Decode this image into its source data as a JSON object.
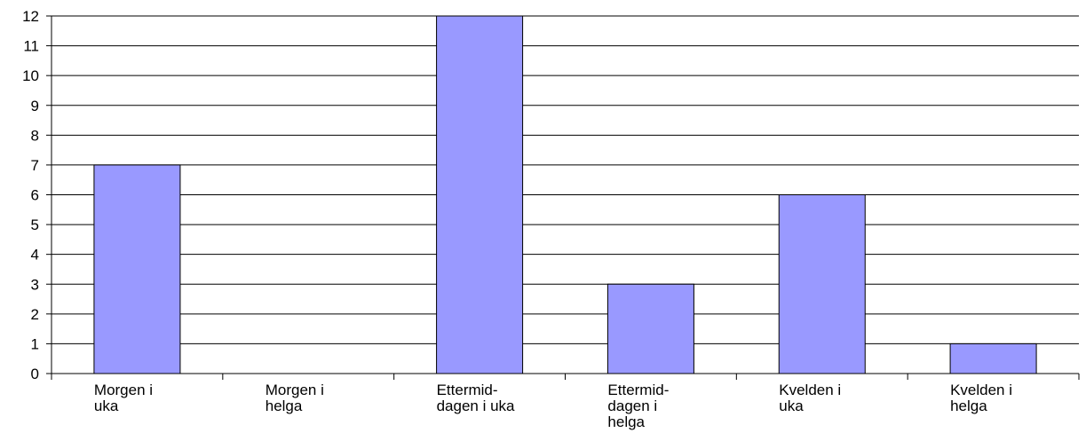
{
  "chart_data": {
    "type": "bar",
    "categories": [
      [
        "Morgen i",
        "uka"
      ],
      [
        "Morgen i",
        "helga"
      ],
      [
        "Ettermid-",
        "dagen i uka"
      ],
      [
        "Ettermid-",
        "dagen i",
        "helga"
      ],
      [
        "Kvelden i",
        "uka"
      ],
      [
        "Kvelden i",
        "helga"
      ]
    ],
    "values": [
      7,
      0,
      12,
      3,
      6,
      1
    ],
    "ylim": [
      0,
      12
    ],
    "yticks": [
      "0",
      "1",
      "2",
      "3",
      "4",
      "5",
      "6",
      "7",
      "8",
      "9",
      "10",
      "11",
      "12"
    ],
    "grid": true,
    "colors": {
      "bar": "#9999ff",
      "bar_stroke": "#000000",
      "grid": "#000000"
    }
  }
}
